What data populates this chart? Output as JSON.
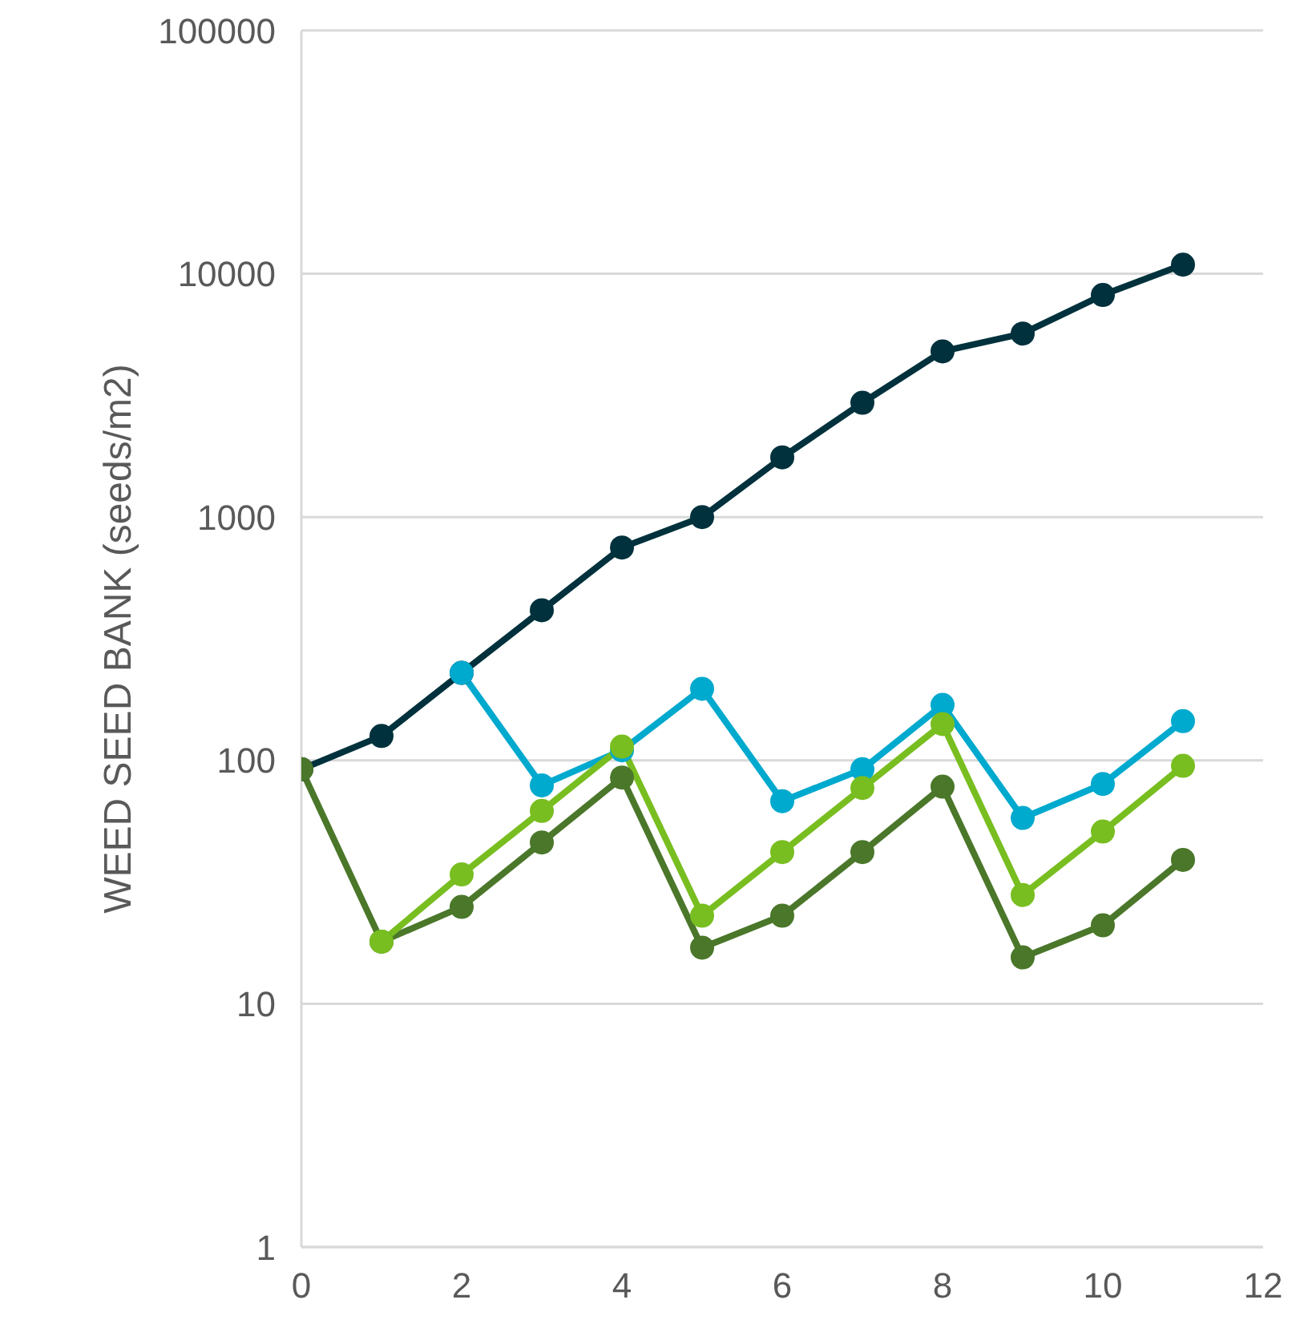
{
  "chart_data": {
    "type": "line",
    "ylabel": "WEED SEED BANK (seeds/m2)",
    "log": "y",
    "grid": "y",
    "marker": "circle",
    "line_style": "solid",
    "xlim": [
      0,
      12
    ],
    "xticks": [
      0,
      2,
      4,
      6,
      8,
      10,
      12
    ],
    "ylim": [
      1,
      100000
    ],
    "yticks": [
      1,
      10,
      100,
      1000,
      10000,
      100000
    ],
    "series": [
      {
        "color": "#00313c",
        "x": [
          0,
          1,
          2,
          3,
          4,
          5,
          6,
          7,
          8,
          9,
          10,
          11
        ],
        "values": [
          92,
          126,
          229,
          414,
          750,
          1000,
          1760,
          2950,
          4800,
          5680,
          8180,
          10900
        ]
      },
      {
        "color": "#00a9ce",
        "x": [
          2,
          3,
          4,
          5,
          6,
          7,
          8,
          9,
          10,
          11
        ],
        "values": [
          229,
          79,
          110,
          197,
          68,
          92,
          169,
          58,
          80,
          145
        ]
      },
      {
        "color": "#4a7729",
        "x": [
          0,
          1,
          2,
          3,
          4,
          5,
          6,
          7,
          8,
          9,
          10,
          11
        ],
        "values": [
          92,
          18,
          25,
          46,
          85,
          17,
          23,
          42,
          78,
          15.5,
          21,
          39
        ]
      },
      {
        "color": "#78be20",
        "x": [
          1,
          2,
          3,
          4,
          5,
          6,
          7,
          8,
          9,
          10,
          11
        ],
        "values": [
          18,
          34,
          62,
          114,
          23,
          42,
          77,
          141,
          28,
          51,
          95
        ]
      }
    ]
  }
}
